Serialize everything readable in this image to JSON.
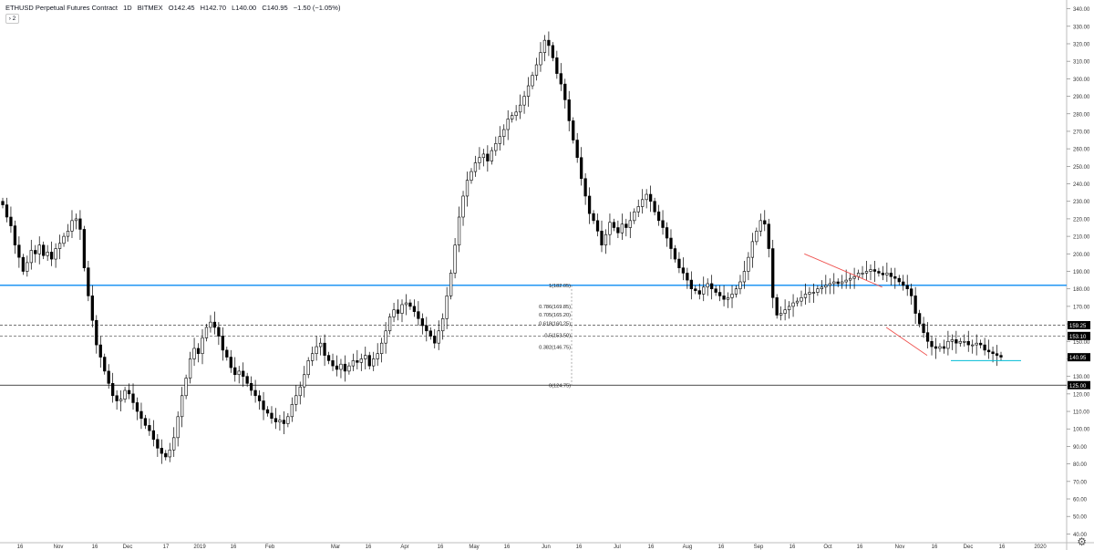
{
  "header": {
    "symbol": "ETHUSD Perpetual Futures Contract",
    "interval": "1D",
    "exchange": "BITMEX",
    "open": "O142.45",
    "high": "H142.70",
    "low": "L140.00",
    "close": "C140.95",
    "change": "−1.50 (−1.05%)"
  },
  "collapse_label": "› 2",
  "settings_icon": "gear-icon",
  "colors": {
    "candle_up": "#ffffff",
    "candle_down": "#000000",
    "outline": "#000000",
    "support_line": "#2196f3",
    "trend_line": "#ef5350",
    "box_line": "#00bcd4",
    "grid": "#e0e3eb",
    "price_badge": "#000000"
  },
  "chart_data": {
    "type": "candlestick",
    "title": "ETHUSD Perpetual Futures Contract",
    "price_scale": {
      "min": 35,
      "max": 345,
      "grid": false
    },
    "y_ticks": [
      40,
      50,
      60,
      70,
      80,
      90,
      100,
      110,
      120,
      130,
      140,
      150,
      160,
      170,
      180,
      190,
      200,
      210,
      220,
      230,
      240,
      250,
      260,
      270,
      280,
      290,
      300,
      310,
      320,
      330,
      340
    ],
    "x_ticks": [
      "16",
      "Nov",
      "16",
      "Dec",
      "17",
      "2019",
      "16",
      "Feb",
      "Mar",
      "16",
      "Apr",
      "16",
      "May",
      "16",
      "Jun",
      "16",
      "Jul",
      "16",
      "Aug",
      "16",
      "Sep",
      "16",
      "Oct",
      "16",
      "Nov",
      "16",
      "Dec",
      "16",
      "2020"
    ],
    "closes": [
      228,
      221,
      216,
      205,
      198,
      190,
      195,
      202,
      200,
      205,
      199,
      201,
      197,
      203,
      206,
      210,
      213,
      219,
      220,
      214,
      192,
      176,
      162,
      148,
      141,
      133,
      126,
      119,
      116,
      117,
      122,
      120,
      115,
      110,
      106,
      102,
      99,
      94,
      89,
      86,
      84,
      88,
      95,
      107,
      119,
      129,
      140,
      146,
      143,
      152,
      158,
      161,
      158,
      153,
      145,
      141,
      135,
      131,
      133,
      130,
      126,
      122,
      119,
      116,
      111,
      109,
      106,
      104,
      105,
      103,
      107,
      114,
      119,
      124,
      131,
      139,
      143,
      147,
      149,
      142,
      139,
      136,
      134,
      137,
      133,
      136,
      139,
      138,
      140,
      142,
      136,
      140,
      143,
      149,
      156,
      164,
      168,
      166,
      171,
      172,
      170,
      167,
      163,
      159,
      156,
      153,
      149,
      156,
      163,
      176,
      189,
      205,
      221,
      233,
      242,
      247,
      252,
      255,
      257,
      253,
      259,
      263,
      267,
      271,
      277,
      279,
      281,
      285,
      290,
      296,
      302,
      308,
      315,
      322,
      319,
      312,
      303,
      297,
      288,
      276,
      265,
      255,
      243,
      233,
      223,
      219,
      213,
      205,
      211,
      218,
      215,
      212,
      217,
      215,
      219,
      224,
      227,
      231,
      234,
      230,
      224,
      219,
      215,
      209,
      203,
      197,
      192,
      189,
      185,
      180,
      179,
      177,
      181,
      183,
      180,
      178,
      176,
      174,
      175,
      177,
      180,
      184,
      190,
      198,
      207,
      213,
      219,
      217,
      203,
      175,
      165,
      166,
      168,
      170,
      172,
      173,
      175,
      177,
      178,
      178,
      180,
      181,
      182,
      183,
      184,
      183,
      184,
      185,
      186,
      187,
      189,
      189,
      190,
      191,
      190,
      189,
      188,
      189,
      187,
      186,
      184,
      182,
      180,
      176,
      166,
      160,
      155,
      150,
      147,
      146,
      147,
      146,
      150,
      151,
      149,
      150,
      150,
      148,
      148,
      149,
      148,
      145,
      144,
      143,
      142,
      141
    ],
    "support_levels": [
      {
        "price": 182.05,
        "label": "1(182.05)"
      },
      {
        "price": 153.5,
        "label": "0.5(153.50)"
      },
      {
        "price": 124.75,
        "label": "0(124.75)"
      }
    ],
    "fibonacci_labels": [
      {
        "price": 182.05,
        "label": "1(182.05)"
      },
      {
        "price": 169.85,
        "label": "0.786(169.85)"
      },
      {
        "price": 165.2,
        "label": "0.705(165.20)"
      },
      {
        "price": 160.25,
        "label": "0.618(160.25)"
      },
      {
        "price": 153.5,
        "label": "0.5(153.50)"
      },
      {
        "price": 146.75,
        "label": "0.382(146.75)"
      },
      {
        "price": 124.75,
        "label": "0(124.75)"
      }
    ],
    "dashed_levels": [
      159.25,
      153.1
    ],
    "price_badges": [
      {
        "price": 159.25,
        "label": "159.25"
      },
      {
        "price": 153.1,
        "label": "153.10"
      },
      {
        "price": 140.95,
        "label": "140.95"
      },
      {
        "price": 125.0,
        "label": "125.00"
      }
    ],
    "trendlines": [
      {
        "from": [
          0.803,
          200
        ],
        "to": [
          0.881,
          181
        ]
      },
      {
        "from": [
          0.885,
          158
        ],
        "to": [
          0.926,
          142
        ]
      }
    ],
    "range_box_bottom": 139
  }
}
